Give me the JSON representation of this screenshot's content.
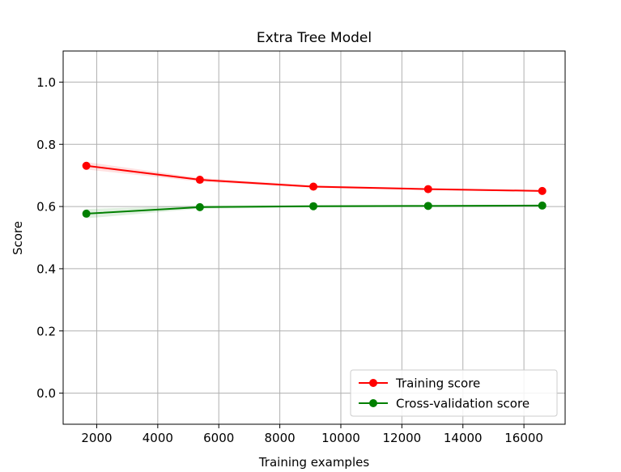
{
  "chart_data": {
    "type": "line",
    "title": "Extra Tree Model",
    "xlabel": "Training examples",
    "ylabel": "Score",
    "xlim": [
      900,
      17350
    ],
    "ylim": [
      -0.1,
      1.1
    ],
    "xticks": [
      2000,
      4000,
      6000,
      8000,
      10000,
      12000,
      14000,
      16000
    ],
    "xtick_labels": [
      "2000",
      "4000",
      "6000",
      "8000",
      "10000",
      "12000",
      "14000",
      "16000"
    ],
    "yticks": [
      0.0,
      0.2,
      0.4,
      0.6,
      0.8,
      1.0
    ],
    "ytick_labels": [
      "0.0",
      "0.2",
      "0.4",
      "0.6",
      "0.8",
      "1.0"
    ],
    "grid": true,
    "legend_position": "lower-right",
    "x": [
      1660,
      5380,
      9100,
      12860,
      16600
    ],
    "series": [
      {
        "name": "Training score",
        "color": "#ff0000",
        "values": [
          0.731,
          0.686,
          0.664,
          0.656,
          0.65
        ],
        "band": [
          0.012,
          0.006,
          0.004,
          0.003,
          0.003
        ]
      },
      {
        "name": "Cross-validation score",
        "color": "#008000",
        "values": [
          0.577,
          0.598,
          0.601,
          0.602,
          0.603
        ],
        "band": [
          0.015,
          0.005,
          0.004,
          0.003,
          0.003
        ]
      }
    ]
  }
}
